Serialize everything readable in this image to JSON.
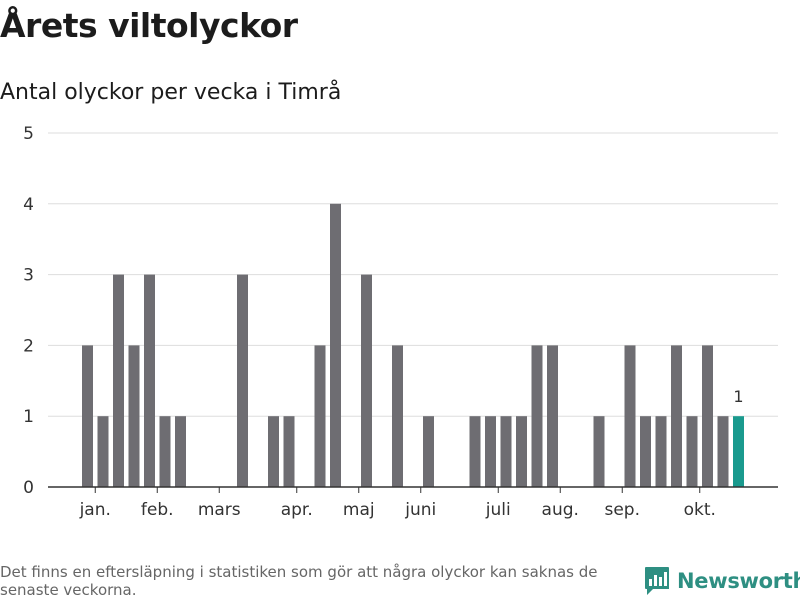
{
  "title": "Årets viltolyckor",
  "subtitle": "Antal olyckor per vecka i Timrå",
  "footnote": "Det finns en eftersläpning i statistiken som gör att några olyckor kan saknas de senaste veckorna.",
  "brand": {
    "name": "Newsworthy",
    "logo_icon": "bar-chart-logo-icon"
  },
  "colors": {
    "bar": "#6e6d72",
    "highlight": "#1a9a8e",
    "grid": "#dddddd",
    "axis": "#333333",
    "brand": "#2e8f82"
  },
  "chart_data": {
    "type": "bar",
    "title": "Antal olyckor per vecka i Timrå",
    "xlabel": "",
    "ylabel": "",
    "ylim": [
      0,
      5
    ],
    "yticks": [
      0,
      1,
      2,
      3,
      4,
      5
    ],
    "weeks": [
      1,
      2,
      3,
      4,
      5,
      6,
      7,
      8,
      9,
      10,
      11,
      12,
      13,
      14,
      15,
      16,
      17,
      18,
      19,
      20,
      21,
      22,
      23,
      24,
      25,
      26,
      27,
      28,
      29,
      30,
      31,
      32,
      33,
      34,
      35,
      36,
      37,
      38,
      39,
      40,
      41,
      42,
      43
    ],
    "values": [
      2,
      1,
      3,
      2,
      3,
      1,
      1,
      0,
      0,
      0,
      3,
      0,
      1,
      1,
      0,
      2,
      4,
      0,
      3,
      0,
      2,
      0,
      1,
      0,
      0,
      1,
      1,
      1,
      1,
      2,
      2,
      0,
      0,
      1,
      0,
      2,
      1,
      1,
      2,
      1,
      2,
      1,
      1
    ],
    "highlight_index": 42,
    "highlight_label": "1",
    "month_labels": [
      {
        "label": "jan.",
        "week": 1.5
      },
      {
        "label": "feb.",
        "week": 5.5
      },
      {
        "label": "mars",
        "week": 9.5
      },
      {
        "label": "apr.",
        "week": 14.5
      },
      {
        "label": "maj",
        "week": 18.5
      },
      {
        "label": "juni",
        "week": 22.5
      },
      {
        "label": "juli",
        "week": 27.5
      },
      {
        "label": "aug.",
        "week": 31.5
      },
      {
        "label": "sep.",
        "week": 35.5
      },
      {
        "label": "okt.",
        "week": 40.5
      }
    ]
  }
}
